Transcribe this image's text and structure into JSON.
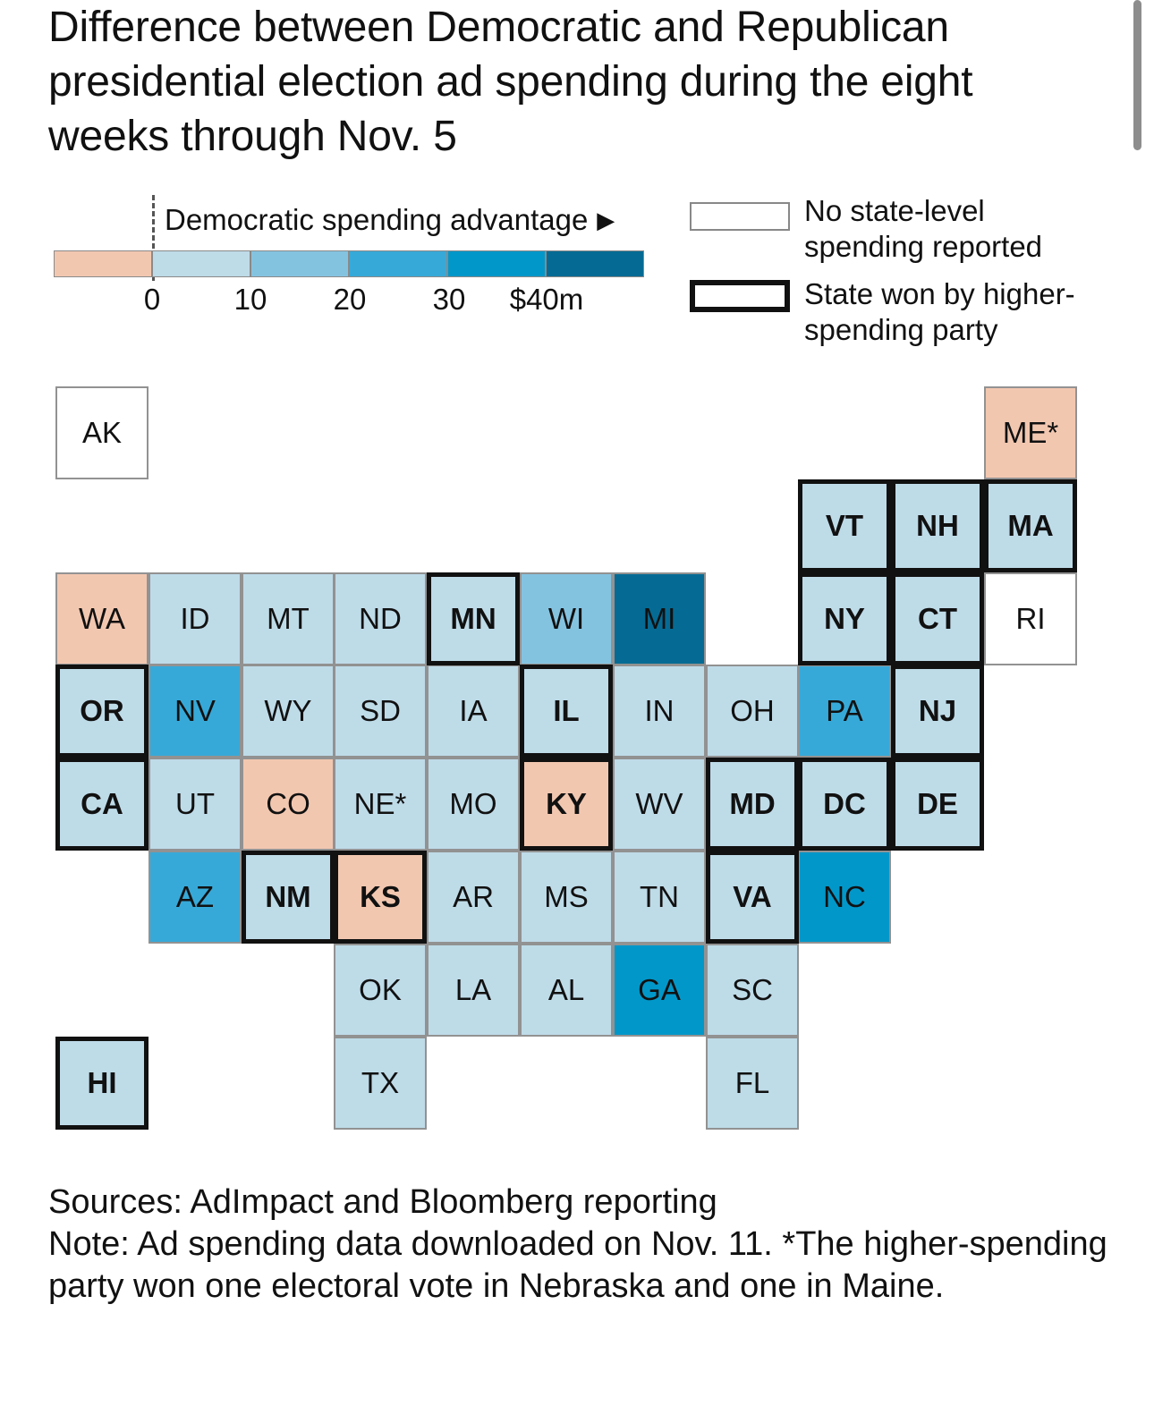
{
  "title": "Difference between Democratic and Republican presidential election ad spending during the eight weeks through Nov. 5",
  "legend": {
    "advantage_label": "Democratic spending advantage",
    "arrow_icon": "right-triangle-icon",
    "ticks": [
      "0",
      "10",
      "20",
      "30",
      "$40m"
    ],
    "scale": [
      {
        "range": "below 0",
        "color": "#f2c7b0"
      },
      {
        "range": "0-10",
        "color": "#bedbe8"
      },
      {
        "range": "10-20",
        "color": "#84c3e0"
      },
      {
        "range": "20-30",
        "color": "#37a9d8"
      },
      {
        "range": "30-40",
        "color": "#0297c9"
      },
      {
        "range": "40+",
        "color": "#056b94"
      }
    ],
    "no_data_label": "No state-level spending reported",
    "won_label": "State won by higher-spending party"
  },
  "map": {
    "states": [
      {
        "abbr": "AK",
        "row": 0,
        "col": 0,
        "bin": "none",
        "won": false
      },
      {
        "abbr": "ME*",
        "row": 0,
        "col": 10,
        "bin": "neg",
        "won": false
      },
      {
        "abbr": "VT",
        "row": 1,
        "col": 8,
        "bin": "1",
        "won": true
      },
      {
        "abbr": "NH",
        "row": 1,
        "col": 9,
        "bin": "1",
        "won": true
      },
      {
        "abbr": "MA",
        "row": 1,
        "col": 10,
        "bin": "1",
        "won": true
      },
      {
        "abbr": "WA",
        "row": 2,
        "col": 0,
        "bin": "neg",
        "won": false
      },
      {
        "abbr": "ID",
        "row": 2,
        "col": 1,
        "bin": "1",
        "won": false
      },
      {
        "abbr": "MT",
        "row": 2,
        "col": 2,
        "bin": "1",
        "won": false
      },
      {
        "abbr": "ND",
        "row": 2,
        "col": 3,
        "bin": "1",
        "won": false
      },
      {
        "abbr": "MN",
        "row": 2,
        "col": 4,
        "bin": "1",
        "won": true
      },
      {
        "abbr": "WI",
        "row": 2,
        "col": 5,
        "bin": "2",
        "won": false
      },
      {
        "abbr": "MI",
        "row": 2,
        "col": 6,
        "bin": "5",
        "won": false
      },
      {
        "abbr": "NY",
        "row": 2,
        "col": 8,
        "bin": "1",
        "won": true
      },
      {
        "abbr": "CT",
        "row": 2,
        "col": 9,
        "bin": "1",
        "won": true
      },
      {
        "abbr": "RI",
        "row": 2,
        "col": 10,
        "bin": "none",
        "won": false
      },
      {
        "abbr": "OR",
        "row": 3,
        "col": 0,
        "bin": "1",
        "won": true
      },
      {
        "abbr": "NV",
        "row": 3,
        "col": 1,
        "bin": "3",
        "won": false
      },
      {
        "abbr": "WY",
        "row": 3,
        "col": 2,
        "bin": "1",
        "won": false
      },
      {
        "abbr": "SD",
        "row": 3,
        "col": 3,
        "bin": "1",
        "won": false
      },
      {
        "abbr": "IA",
        "row": 3,
        "col": 4,
        "bin": "1",
        "won": false
      },
      {
        "abbr": "IL",
        "row": 3,
        "col": 5,
        "bin": "1",
        "won": true
      },
      {
        "abbr": "IN",
        "row": 3,
        "col": 6,
        "bin": "1",
        "won": false
      },
      {
        "abbr": "OH",
        "row": 3,
        "col": 7,
        "bin": "1",
        "won": false
      },
      {
        "abbr": "PA",
        "row": 3,
        "col": 8,
        "bin": "3",
        "won": false
      },
      {
        "abbr": "NJ",
        "row": 3,
        "col": 9,
        "bin": "1",
        "won": true
      },
      {
        "abbr": "CA",
        "row": 4,
        "col": 0,
        "bin": "1",
        "won": true
      },
      {
        "abbr": "UT",
        "row": 4,
        "col": 1,
        "bin": "1",
        "won": false
      },
      {
        "abbr": "CO",
        "row": 4,
        "col": 2,
        "bin": "neg",
        "won": false
      },
      {
        "abbr": "NE*",
        "row": 4,
        "col": 3,
        "bin": "1",
        "won": false
      },
      {
        "abbr": "MO",
        "row": 4,
        "col": 4,
        "bin": "1",
        "won": false
      },
      {
        "abbr": "KY",
        "row": 4,
        "col": 5,
        "bin": "neg",
        "won": true
      },
      {
        "abbr": "WV",
        "row": 4,
        "col": 6,
        "bin": "1",
        "won": false
      },
      {
        "abbr": "MD",
        "row": 4,
        "col": 7,
        "bin": "1",
        "won": true
      },
      {
        "abbr": "DC",
        "row": 4,
        "col": 8,
        "bin": "1",
        "won": true
      },
      {
        "abbr": "DE",
        "row": 4,
        "col": 9,
        "bin": "1",
        "won": true
      },
      {
        "abbr": "AZ",
        "row": 5,
        "col": 1,
        "bin": "3",
        "won": false
      },
      {
        "abbr": "NM",
        "row": 5,
        "col": 2,
        "bin": "1",
        "won": true
      },
      {
        "abbr": "KS",
        "row": 5,
        "col": 3,
        "bin": "neg",
        "won": true
      },
      {
        "abbr": "AR",
        "row": 5,
        "col": 4,
        "bin": "1",
        "won": false
      },
      {
        "abbr": "MS",
        "row": 5,
        "col": 5,
        "bin": "1",
        "won": false
      },
      {
        "abbr": "TN",
        "row": 5,
        "col": 6,
        "bin": "1",
        "won": false
      },
      {
        "abbr": "VA",
        "row": 5,
        "col": 7,
        "bin": "1",
        "won": true
      },
      {
        "abbr": "NC",
        "row": 5,
        "col": 8,
        "bin": "4",
        "won": false
      },
      {
        "abbr": "OK",
        "row": 6,
        "col": 3,
        "bin": "1",
        "won": false
      },
      {
        "abbr": "LA",
        "row": 6,
        "col": 4,
        "bin": "1",
        "won": false
      },
      {
        "abbr": "AL",
        "row": 6,
        "col": 5,
        "bin": "1",
        "won": false
      },
      {
        "abbr": "GA",
        "row": 6,
        "col": 6,
        "bin": "4",
        "won": false
      },
      {
        "abbr": "SC",
        "row": 6,
        "col": 7,
        "bin": "1",
        "won": false
      },
      {
        "abbr": "HI",
        "row": 7,
        "col": 0,
        "bin": "1",
        "won": true
      },
      {
        "abbr": "TX",
        "row": 7,
        "col": 3,
        "bin": "1",
        "won": false
      },
      {
        "abbr": "FL",
        "row": 7,
        "col": 7,
        "bin": "1",
        "won": false
      }
    ]
  },
  "footer": {
    "sources": "Sources: AdImpact and Bloomberg reporting",
    "note": "Note: Ad spending data downloaded on Nov. 11. *The higher-spending party won one electoral vote in Nebraska and one in Maine."
  }
}
